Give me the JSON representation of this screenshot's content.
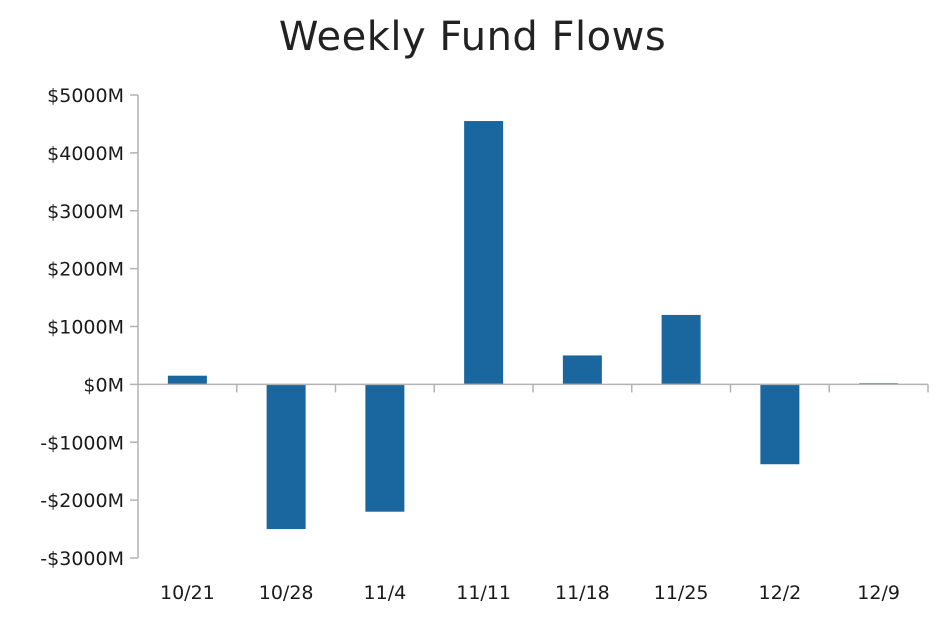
{
  "chart_data": {
    "type": "bar",
    "title": "Weekly Fund Flows",
    "xlabel": "",
    "ylabel": "",
    "categories": [
      "10/21",
      "10/28",
      "11/4",
      "11/11",
      "11/18",
      "11/25",
      "12/2",
      "12/9"
    ],
    "series": [
      {
        "values": [
          150,
          -2500,
          -2200,
          4550,
          500,
          1200,
          -1380,
          20
        ]
      }
    ],
    "ylim": [
      -3000,
      5000
    ],
    "yticks": [
      5000,
      4000,
      3000,
      2000,
      1000,
      0,
      -1000,
      -2000,
      -3000
    ],
    "ytick_labels": [
      "$5000M",
      "$4000M",
      "$3000M",
      "$2000M",
      "$1000M",
      "$0M",
      "-$1000M",
      "-$2000M",
      "-$3000M"
    ],
    "grid": false,
    "legend": "none",
    "bar_color": "#1a67a0",
    "axis_color": "#b3b3b3"
  }
}
